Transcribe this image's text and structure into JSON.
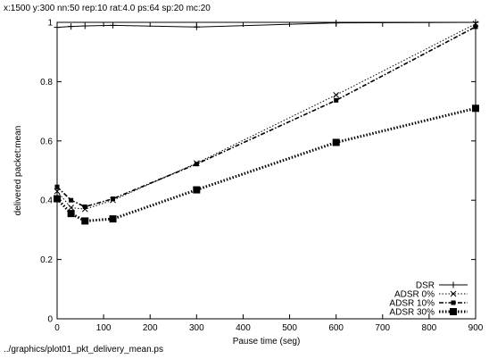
{
  "header": {
    "caption": "x:1500 y:300 nn:50 rep:10 rat:4.0 ps:64 sp:20 mc:20"
  },
  "footer": {
    "caption": "../graphics/plot01_pkt_delivery_mean.ps"
  },
  "chart_data": {
    "type": "line",
    "xlabel": "Pause time (seg)",
    "ylabel": "delivered packet:mean",
    "xlim": [
      0,
      900
    ],
    "ylim": [
      0,
      1
    ],
    "xticks": [
      0,
      100,
      200,
      300,
      400,
      500,
      600,
      700,
      800,
      900
    ],
    "yticks": [
      0,
      0.2,
      0.4,
      0.6,
      0.8,
      1
    ],
    "ytick_labels": [
      "0",
      "0.2",
      "0.4",
      "0.6",
      "0.8",
      "1"
    ],
    "legend_position": "bottom-right",
    "series": [
      {
        "name": "DSR",
        "marker": "plus",
        "dash": "solid",
        "stroke_width": 1,
        "x": [
          0,
          30,
          60,
          120,
          300,
          600,
          900
        ],
        "y": [
          0.983,
          0.986,
          0.988,
          0.99,
          0.984,
          0.998,
          1.0
        ]
      },
      {
        "name": "ADSR 0%",
        "marker": "cross",
        "dash": "dotted",
        "stroke_width": 1,
        "x": [
          0,
          30,
          60,
          120,
          300,
          600,
          900
        ],
        "y": [
          0.43,
          0.375,
          0.37,
          0.4,
          0.525,
          0.755,
          0.995
        ]
      },
      {
        "name": "ADSR 10%",
        "marker": "small-square",
        "dash": "dashdot",
        "stroke_width": 1.6,
        "x": [
          0,
          30,
          60,
          120,
          300,
          600,
          900
        ],
        "y": [
          0.445,
          0.4,
          0.378,
          0.405,
          0.522,
          0.737,
          0.985
        ]
      },
      {
        "name": "ADSR 30%",
        "marker": "square",
        "dash": "dotted",
        "stroke_width": 3,
        "x": [
          0,
          30,
          60,
          120,
          300,
          600,
          900
        ],
        "y": [
          0.405,
          0.355,
          0.33,
          0.337,
          0.435,
          0.595,
          0.71
        ]
      }
    ]
  }
}
